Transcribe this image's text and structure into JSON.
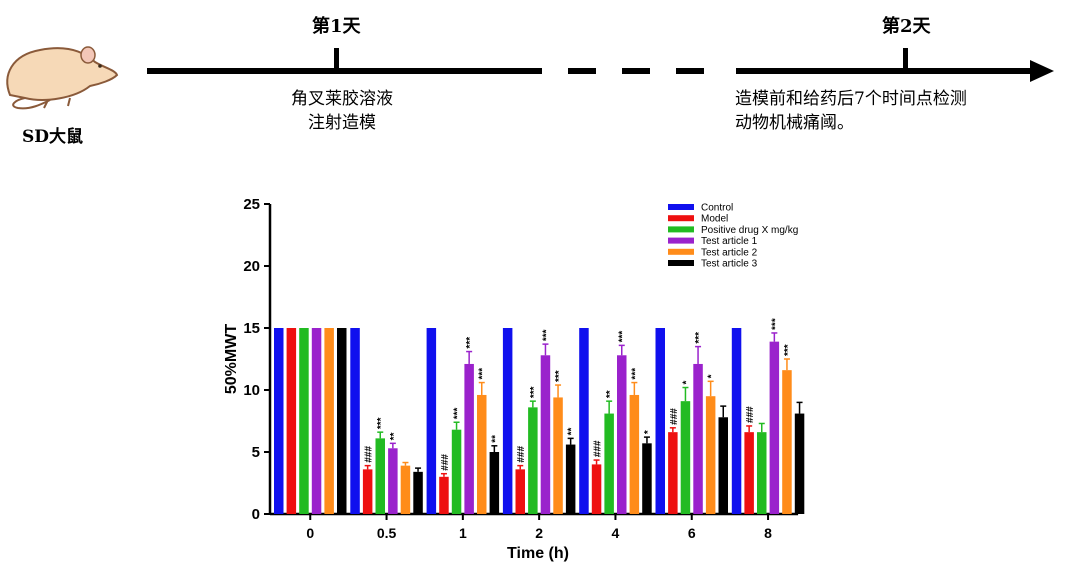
{
  "timeline": {
    "day1": "第1天",
    "day2": "第2天",
    "subject": "SD大鼠",
    "step1_line1": "角叉莱胶溶液",
    "step1_line2": "注射造模",
    "step2_line1": "造模前和给药后7个时间点检测",
    "step2_line2": "动物机械痛阈。"
  },
  "chart_data": {
    "type": "bar",
    "xlabel": "Time (h)",
    "ylabel": "50%MWT",
    "ylim": [
      0,
      25
    ],
    "yticks": [
      0,
      5,
      10,
      15,
      20,
      25
    ],
    "categories": [
      "0",
      "0.5",
      "1",
      "2",
      "4",
      "6",
      "8"
    ],
    "grid": false,
    "legend_position": "top-right",
    "series": [
      {
        "name": "Control",
        "color": "#1010ee",
        "values": [
          15,
          15,
          15,
          15,
          15,
          15,
          15
        ],
        "errors": [
          0,
          0,
          0,
          0,
          0,
          0,
          0
        ],
        "marks": [
          "",
          "",
          "",
          "",
          "",
          "",
          ""
        ]
      },
      {
        "name": "Model",
        "color": "#ee1010",
        "values": [
          15,
          3.6,
          3.0,
          3.6,
          4.0,
          6.6,
          6.6
        ],
        "errors": [
          0,
          0.3,
          0.25,
          0.3,
          0.35,
          0.35,
          0.5
        ],
        "marks": [
          "",
          "###",
          "###",
          "###",
          "###",
          "###",
          "###"
        ]
      },
      {
        "name": "Positive drug X mg/kg",
        "color": "#22bb22",
        "values": [
          15,
          6.1,
          6.8,
          8.6,
          8.1,
          9.1,
          6.6
        ],
        "errors": [
          0,
          0.5,
          0.6,
          0.5,
          1.0,
          1.1,
          0.7
        ],
        "marks": [
          "",
          "***",
          "***",
          "***",
          "**",
          "*",
          ""
        ]
      },
      {
        "name": "Test article 1",
        "color": "#9a22cc",
        "values": [
          15,
          5.3,
          12.1,
          12.8,
          12.8,
          12.1,
          13.9
        ],
        "errors": [
          0,
          0.4,
          1.0,
          0.9,
          0.8,
          1.4,
          0.7
        ],
        "marks": [
          "",
          "**",
          "***",
          "***",
          "***",
          "***",
          "***"
        ]
      },
      {
        "name": "Test article 2",
        "color": "#ff8c1a",
        "values": [
          15,
          3.9,
          9.6,
          9.4,
          9.6,
          9.5,
          11.6
        ],
        "errors": [
          0,
          0.25,
          1.0,
          1.0,
          1.0,
          1.2,
          0.9
        ],
        "marks": [
          "",
          "",
          "***",
          "***",
          "***",
          "*",
          "***"
        ]
      },
      {
        "name": "Test article 3",
        "color": "#000000",
        "values": [
          15,
          3.4,
          5.0,
          5.6,
          5.7,
          7.8,
          8.1
        ],
        "errors": [
          0,
          0.3,
          0.5,
          0.5,
          0.5,
          0.9,
          0.9
        ],
        "marks": [
          "",
          "",
          "**",
          "**",
          "*",
          "",
          ""
        ]
      }
    ]
  }
}
